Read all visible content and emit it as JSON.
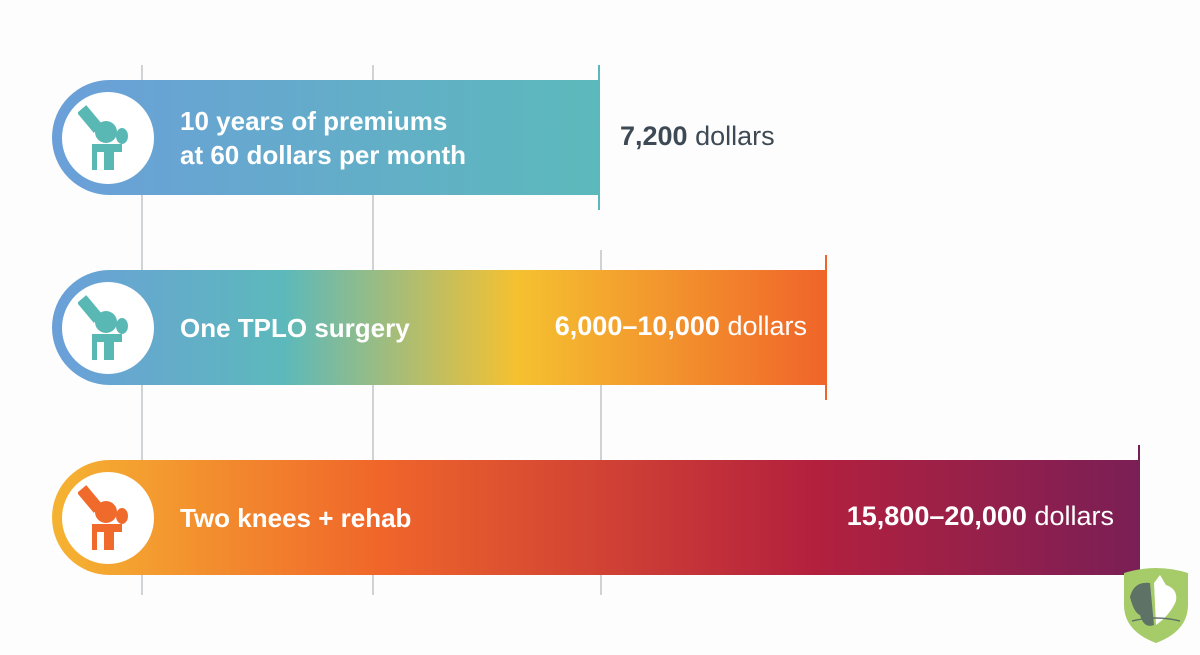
{
  "chart_data": {
    "type": "bar",
    "orientation": "horizontal",
    "categories": [
      "10 years of premiums at 60 dollars per month",
      "One TPLO surgery",
      "Two knees + rehab"
    ],
    "bars": [
      {
        "label_lines": [
          "10 years of premiums",
          "at 60 dollars per month"
        ],
        "value_text": "7,200",
        "unit": "dollars",
        "value": 7200,
        "icon": "knee-joint-icon"
      },
      {
        "label_lines": [
          "One TPLO surgery"
        ],
        "value_text": "6,000–10,000",
        "unit": "dollars",
        "value": [
          6000,
          10000
        ],
        "icon": "knee-joint-icon"
      },
      {
        "label_lines": [
          "Two knees + rehab"
        ],
        "value_text": "15,800–20,000",
        "unit": "dollars",
        "value": [
          15800,
          20000
        ],
        "icon": "knee-joint-icon"
      }
    ],
    "grid": true
  },
  "colors": {
    "blue": "#6b9fd9",
    "teal": "#5cb9bb",
    "yellow": "#f5c130",
    "orange": "#f0642a",
    "red": "#b3203e",
    "purple": "#7a1f56",
    "text_dark": "#3d4a55"
  },
  "logo": {
    "icon": "pet-shield-logo"
  }
}
